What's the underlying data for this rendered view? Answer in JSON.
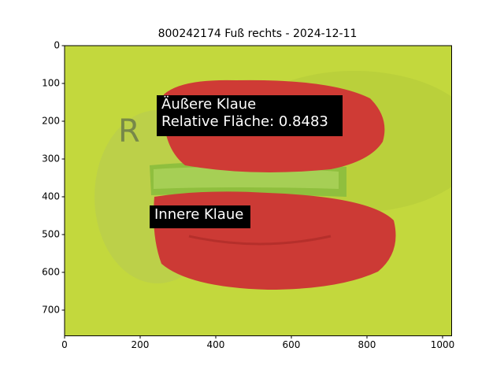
{
  "chart_data": {
    "type": "image",
    "title": "800242174 Fuß rechts - 2024-12-11",
    "xlim": [
      0,
      1024
    ],
    "ylim": [
      768,
      0
    ],
    "xticks": [
      0,
      200,
      400,
      600,
      800,
      1000
    ],
    "yticks": [
      0,
      100,
      200,
      300,
      400,
      500,
      600,
      700
    ],
    "annotations": [
      {
        "lines": [
          "Äußere Klaue",
          "Relative Fläche: 0.8483"
        ]
      },
      {
        "lines": [
          "Innere Klaue"
        ]
      }
    ]
  }
}
